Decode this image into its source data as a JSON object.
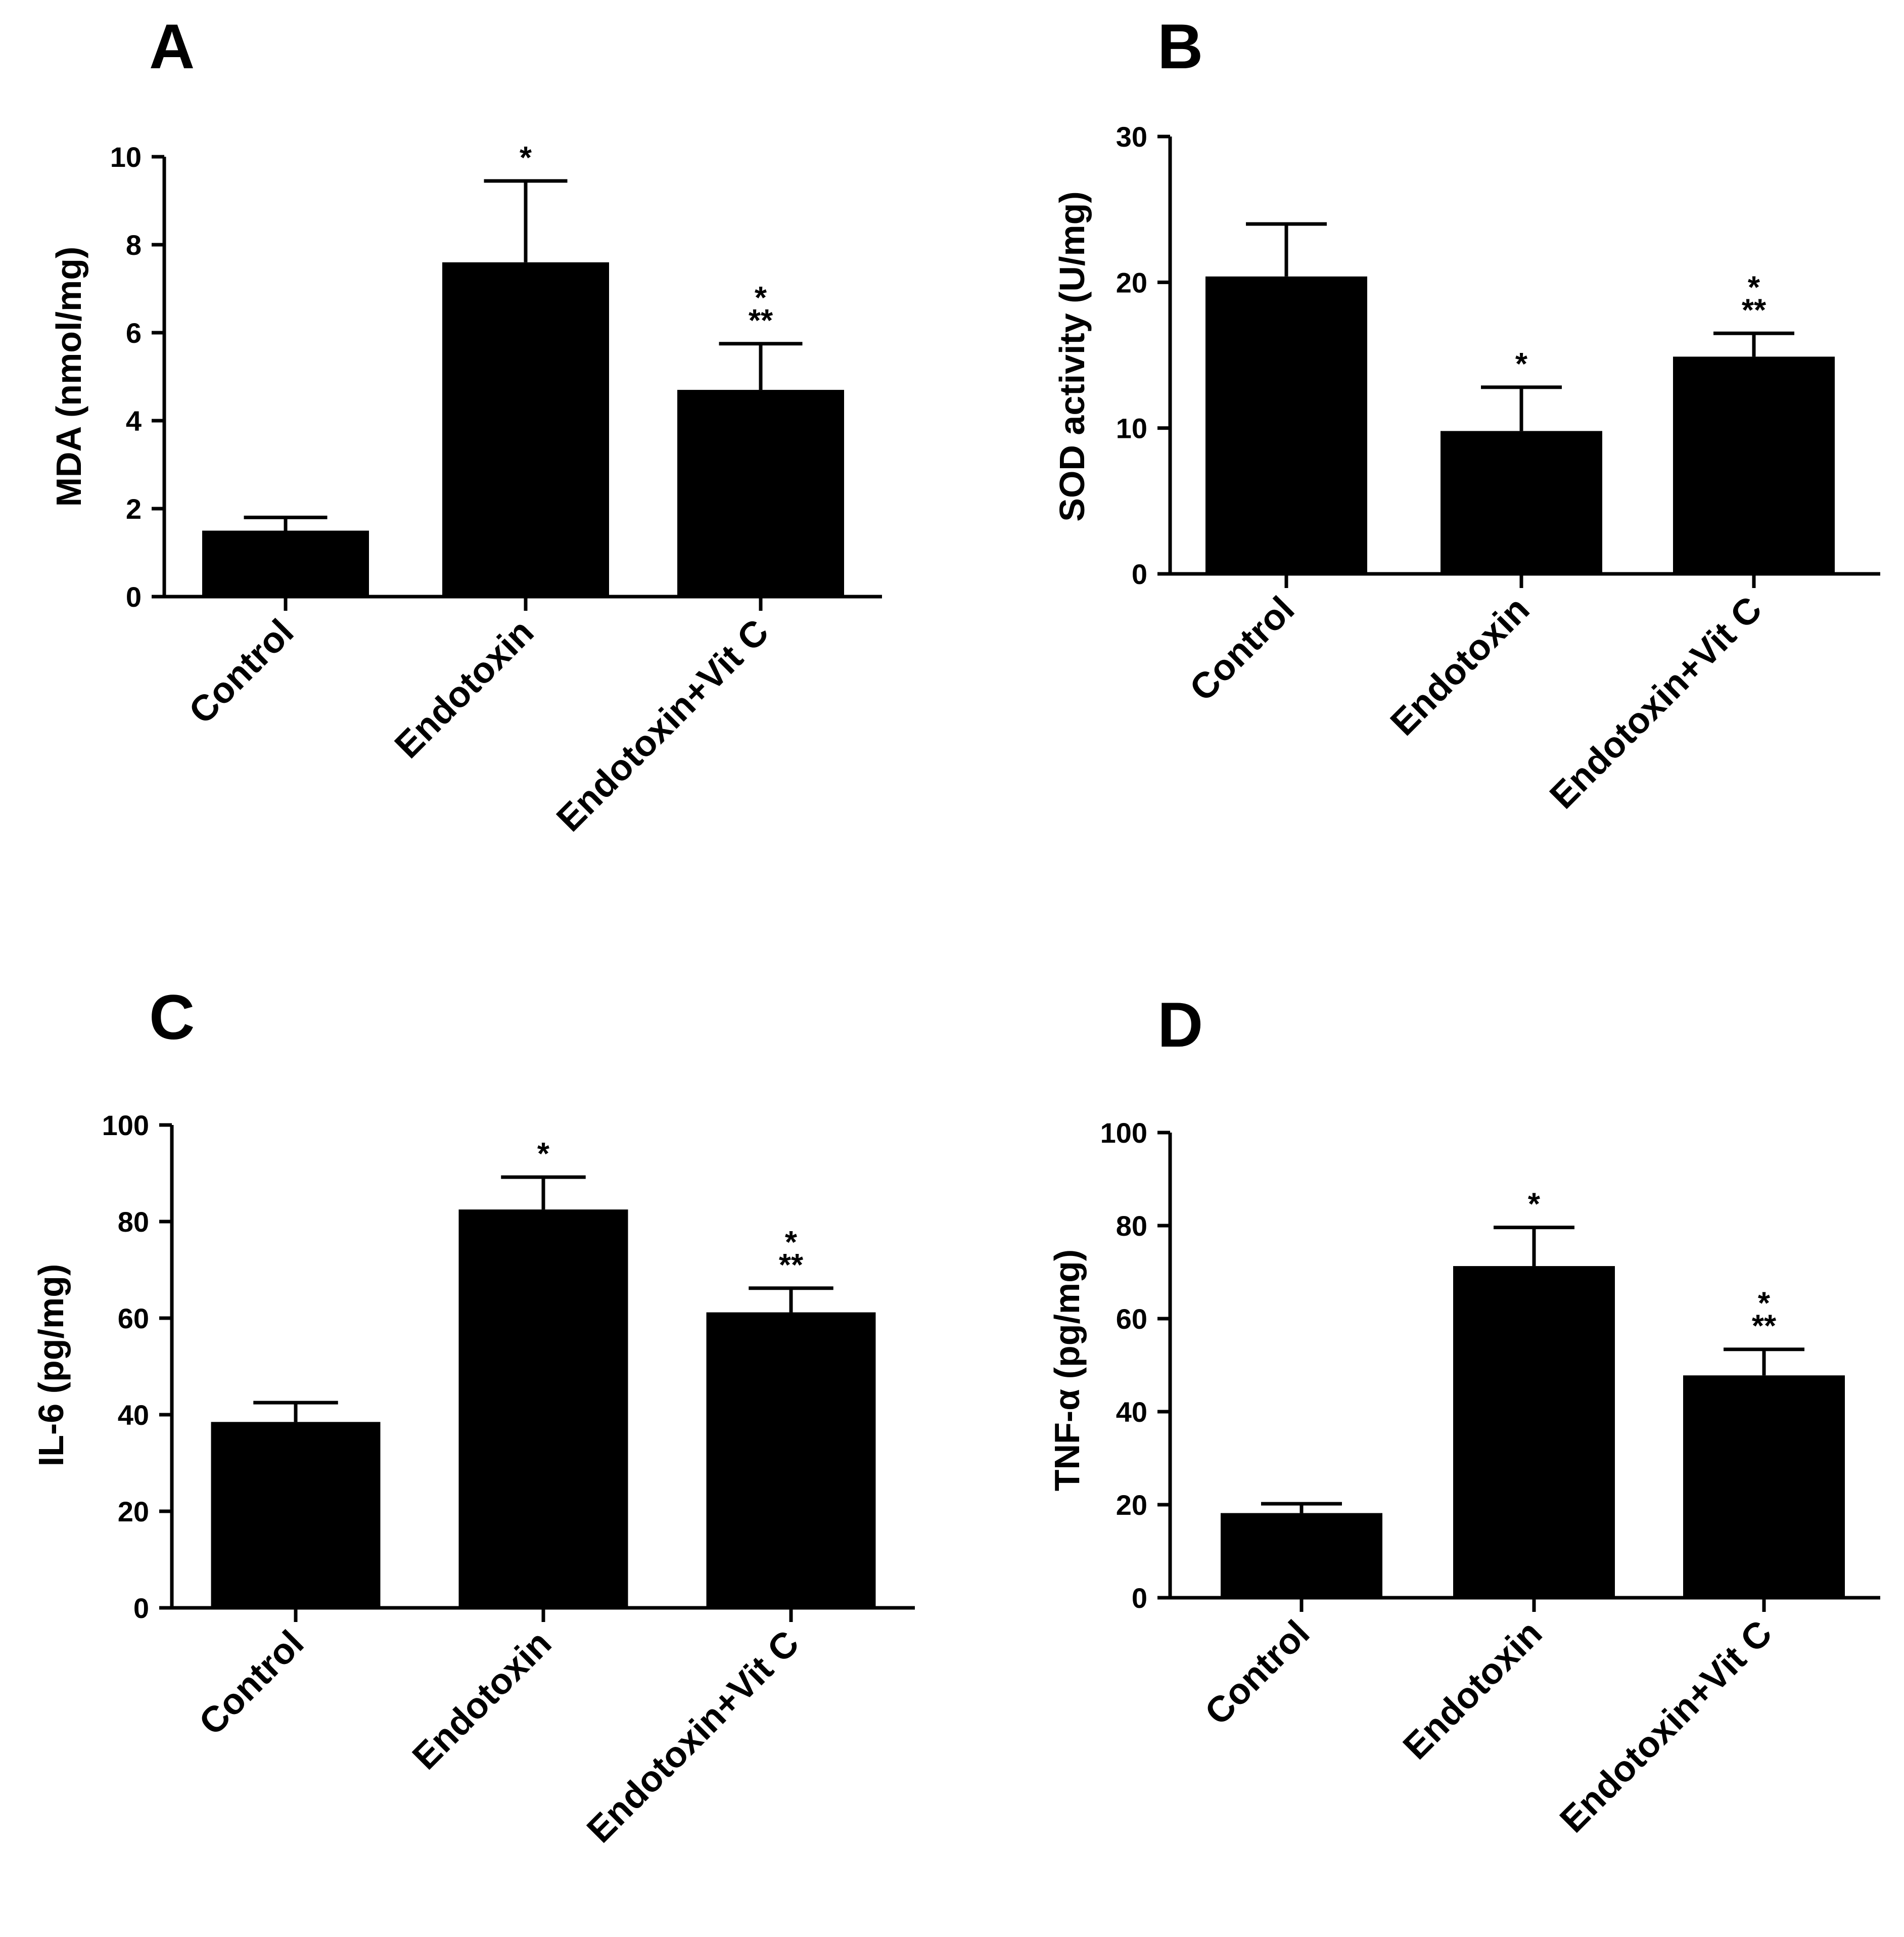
{
  "figure": {
    "background": "#ffffff",
    "bar_color": "#000000"
  },
  "chart_data": [
    {
      "panel": "A",
      "type": "bar",
      "categories": [
        "Control",
        "Endotoxin",
        "Endotoxin+Vit C"
      ],
      "values": [
        1.5,
        7.6,
        4.7
      ],
      "errors": [
        0.3,
        1.85,
        1.05
      ],
      "significance": [
        [],
        [
          "*"
        ],
        [
          "*",
          "**"
        ]
      ],
      "ylabel": "MDA (nmol/mg)",
      "ylim": [
        0,
        10
      ],
      "yticks": [
        0,
        2,
        4,
        6,
        8,
        10
      ],
      "ytick_labels": [
        "0",
        "2",
        "4",
        "6",
        "8",
        "10"
      ]
    },
    {
      "panel": "B",
      "type": "bar",
      "categories": [
        "Control",
        "Endotoxin",
        "Endotoxin+Vit C"
      ],
      "values": [
        20.4,
        9.8,
        14.9
      ],
      "errors": [
        3.6,
        3.0,
        1.6
      ],
      "significance": [
        [],
        [
          "*"
        ],
        [
          "*",
          "**"
        ]
      ],
      "ylabel": "SOD activity (U/mg)",
      "ylim": [
        0,
        30
      ],
      "yticks": [
        0,
        10,
        20,
        30
      ],
      "ytick_labels": [
        "0",
        "10",
        "20",
        "30"
      ]
    },
    {
      "panel": "C",
      "type": "bar",
      "categories": [
        "Control",
        "Endotoxin",
        "Endotoxin+Vit C"
      ],
      "values": [
        38.5,
        82.5,
        61.2
      ],
      "errors": [
        4.0,
        6.7,
        5.0
      ],
      "significance": [
        [],
        [
          "*"
        ],
        [
          "*",
          "**"
        ]
      ],
      "ylabel": "IL-6 (pg/mg)",
      "ylim": [
        0,
        100
      ],
      "yticks": [
        0,
        20,
        40,
        60,
        80,
        100
      ],
      "ytick_labels": [
        "0",
        "20",
        "40",
        "60",
        "80",
        "100"
      ]
    },
    {
      "panel": "D",
      "type": "bar",
      "categories": [
        "Control",
        "Endotoxin",
        "Endotoxin+Vit C"
      ],
      "values": [
        18.2,
        71.3,
        47.8
      ],
      "errors": [
        2.0,
        8.3,
        5.6
      ],
      "significance": [
        [],
        [
          "*"
        ],
        [
          "*",
          "**"
        ]
      ],
      "ylabel": "TNF-α (pg/mg)",
      "ylim": [
        0,
        100
      ],
      "yticks": [
        0,
        20,
        40,
        60,
        80,
        100
      ],
      "ytick_labels": [
        "0",
        "20",
        "40",
        "60",
        "80",
        "100"
      ]
    }
  ]
}
